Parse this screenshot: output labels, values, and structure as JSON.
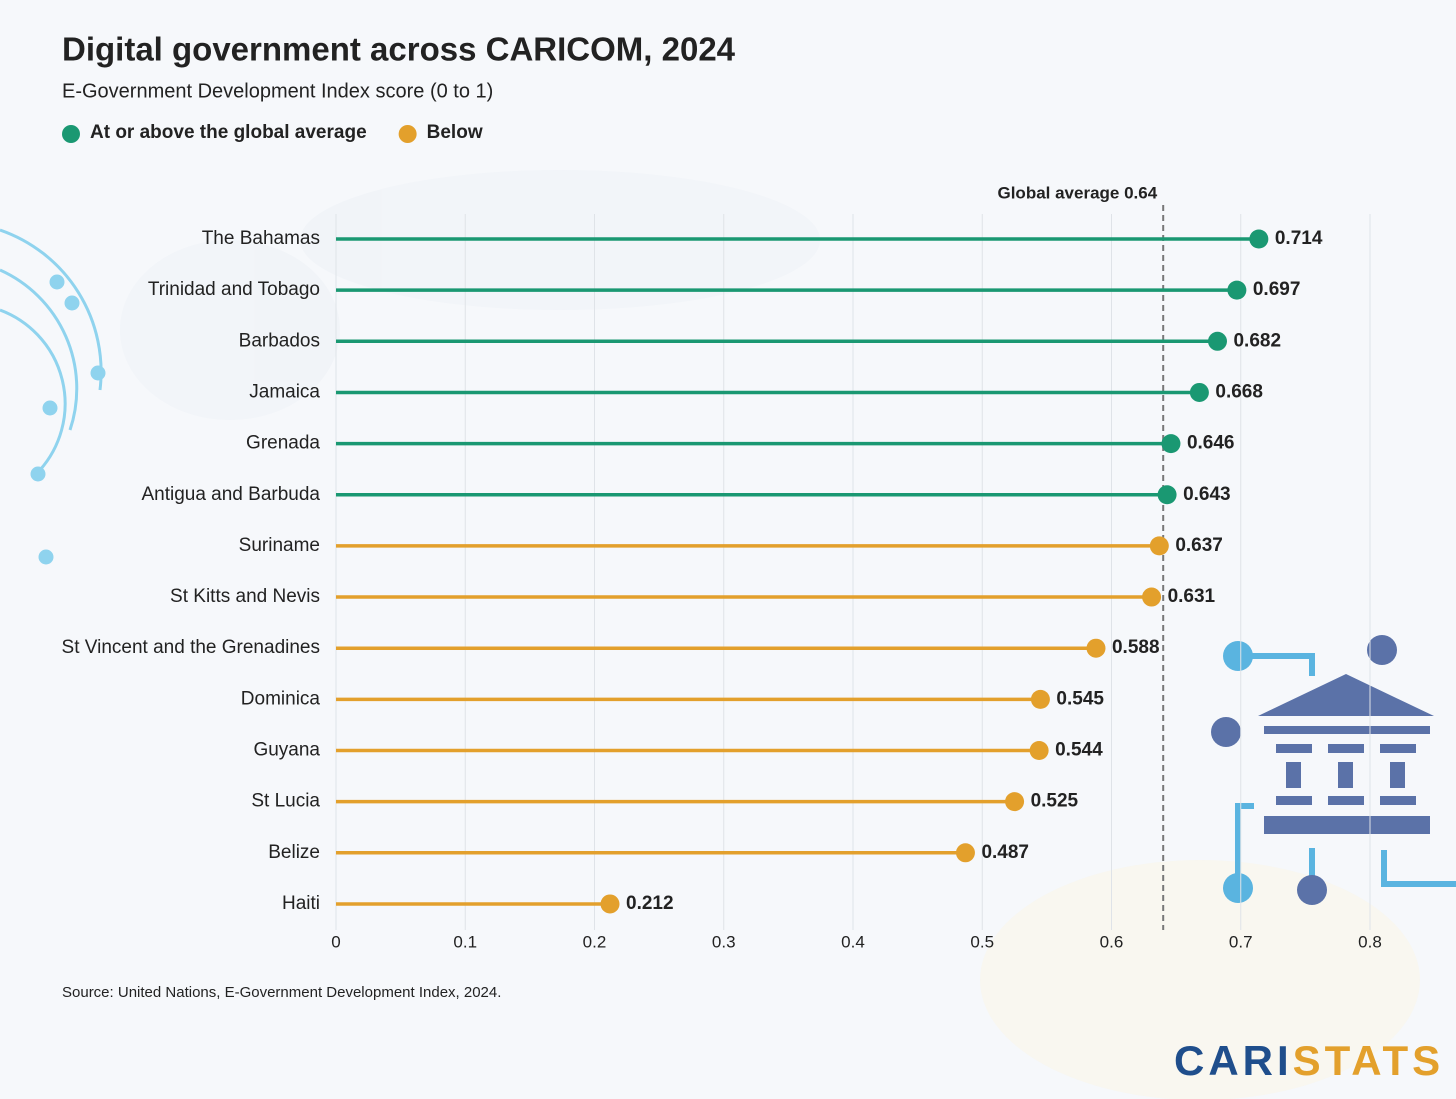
{
  "chart_data": {
    "type": "lollipop",
    "orientation": "horizontal",
    "title": "Digital government across CARICOM, 2024",
    "subtitle": "E-Government Development Index score (0 to 1)",
    "categories": [
      "The Bahamas",
      "Trinidad and Tobago",
      "Barbados",
      "Jamaica",
      "Grenada",
      "Antigua and Barbuda",
      "Suriname",
      "St Kitts and Nevis",
      "St Vincent and the Grenadines",
      "Dominica",
      "Guyana",
      "St Lucia",
      "Belize",
      "Haiti"
    ],
    "series": [
      {
        "name": "At or above the global average",
        "color": "#1a9872",
        "values": [
          0.714,
          0.697,
          0.682,
          0.668,
          0.646,
          0.643,
          null,
          null,
          null,
          null,
          null,
          null,
          null,
          null
        ]
      },
      {
        "name": "Below",
        "color": "#e3a02c",
        "values": [
          null,
          null,
          null,
          null,
          null,
          null,
          0.637,
          0.631,
          0.588,
          0.545,
          0.544,
          0.525,
          0.487,
          0.212
        ]
      }
    ],
    "xlim": [
      0,
      0.8
    ],
    "xticks": [
      0,
      0.1,
      0.2,
      0.3,
      0.4,
      0.5,
      0.6,
      0.7,
      0.8
    ],
    "grid": true,
    "reference_line": {
      "value": 0.64,
      "label": "Global average 0.64"
    },
    "source": "Source: United Nations, E-Government Development Index, 2024.",
    "brand": [
      "CARI",
      "STATS"
    ]
  }
}
